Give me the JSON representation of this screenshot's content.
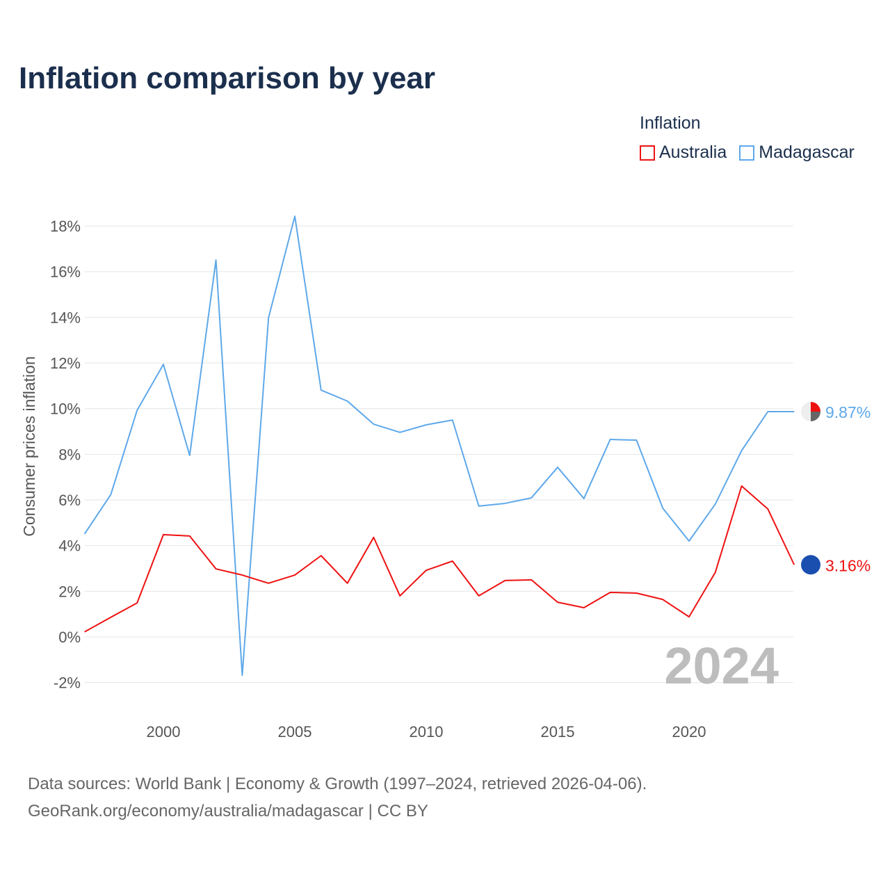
{
  "chart_data": {
    "type": "line",
    "title": "Inflation comparison by year",
    "xlabel": "",
    "ylabel": "Consumer prices inflation",
    "legend_title": "Inflation",
    "legend_position": "top-right",
    "xlim": [
      1997,
      2024
    ],
    "ylim": [
      -2.5,
      18.5
    ],
    "yticks": [
      -2,
      0,
      2,
      4,
      6,
      8,
      10,
      12,
      14,
      16,
      18
    ],
    "ytick_labels": [
      "-2%",
      "0%",
      "2%",
      "4%",
      "6%",
      "8%",
      "10%",
      "12%",
      "14%",
      "16%",
      "18%"
    ],
    "xticks": [
      2000,
      2005,
      2010,
      2015,
      2020
    ],
    "xtick_labels": [
      "2000",
      "2005",
      "2010",
      "2015",
      "2020"
    ],
    "grid": true,
    "year_watermark": "2024",
    "x": [
      1997,
      1998,
      1999,
      2000,
      2001,
      2002,
      2003,
      2004,
      2005,
      2006,
      2007,
      2008,
      2009,
      2010,
      2011,
      2012,
      2013,
      2014,
      2015,
      2016,
      2017,
      2018,
      2019,
      2020,
      2021,
      2022,
      2023,
      2024
    ],
    "series": [
      {
        "name": "Australia",
        "color": "#ee1111",
        "end_label": "3.16%",
        "values": [
          0.22,
          0.86,
          1.49,
          4.48,
          4.42,
          2.98,
          2.71,
          2.35,
          2.71,
          3.56,
          2.35,
          4.36,
          1.8,
          2.92,
          3.32,
          1.8,
          2.47,
          2.5,
          1.52,
          1.28,
          1.95,
          1.92,
          1.64,
          0.88,
          2.83,
          6.61,
          5.6,
          3.16
        ]
      },
      {
        "name": "Madagascar",
        "color": "#5ea8ea",
        "end_label": "9.87%",
        "values": [
          4.51,
          6.24,
          9.93,
          11.94,
          7.95,
          16.51,
          -1.68,
          13.98,
          18.43,
          10.81,
          10.33,
          9.32,
          8.96,
          9.29,
          9.5,
          5.73,
          5.85,
          6.09,
          7.43,
          6.06,
          8.65,
          8.62,
          5.64,
          4.2,
          5.82,
          8.16,
          9.87,
          9.87
        ]
      }
    ]
  },
  "footer": {
    "line1": "Data sources: World Bank | Economy & Growth (1997–2024, retrieved 2026-04-06).",
    "line2": "GeoRank.org/economy/australia/madagascar | CC BY"
  }
}
